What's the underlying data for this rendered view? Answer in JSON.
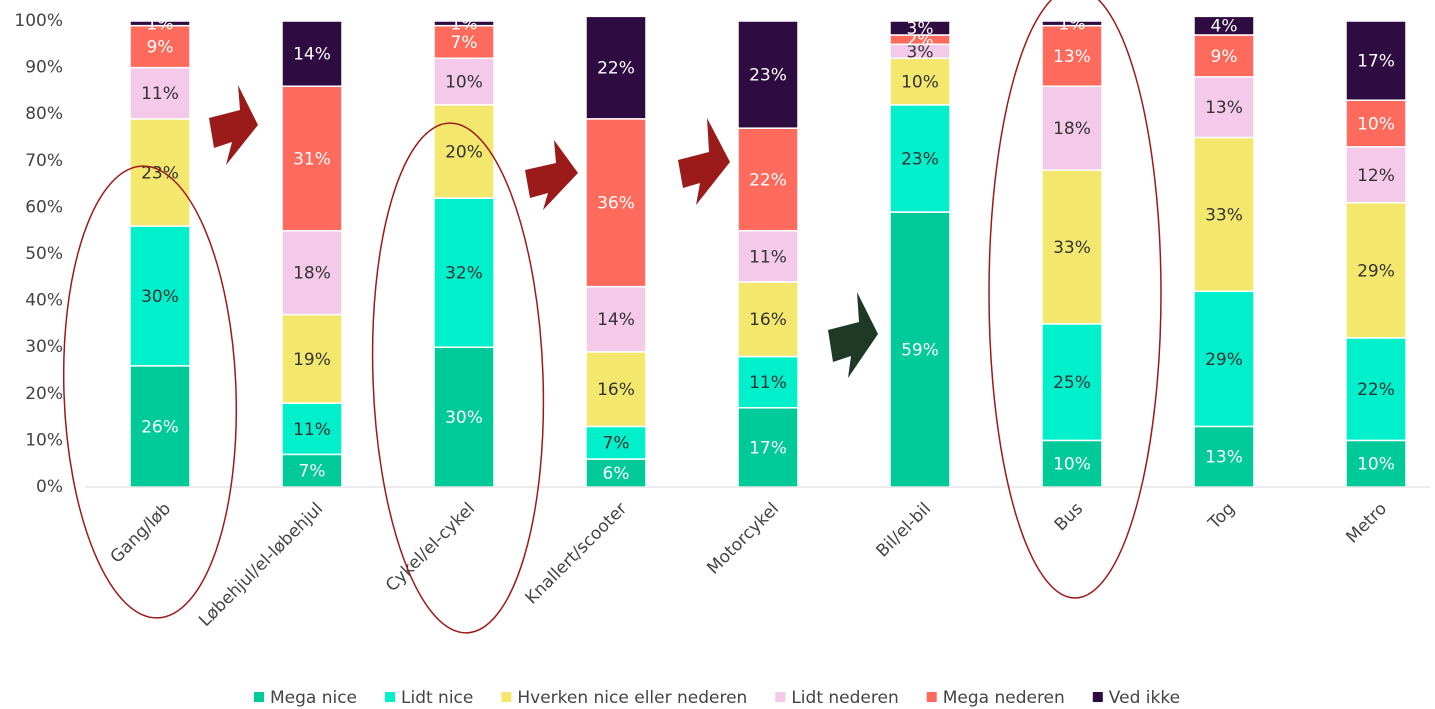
{
  "chart_data": {
    "type": "stacked_bar",
    "categories": [
      "Gang/løb",
      "Løbehjul/el-løbehjul",
      "Cykel/el-cykel",
      "Knallert/scooter",
      "Motorcykel",
      "Bil/el-bil",
      "Bus",
      "Tog",
      "Metro"
    ],
    "series": [
      {
        "name": "Mega nice",
        "color": "#00c99a",
        "values": [
          26,
          7,
          30,
          6,
          17,
          59,
          10,
          13,
          10
        ],
        "value_labels": [
          "26%",
          "7%",
          "30%",
          "6%",
          "17%",
          "59%",
          "10%",
          "13%",
          "10%"
        ]
      },
      {
        "name": "Lidt nice",
        "color": "#00f0cc",
        "values": [
          30,
          11,
          32,
          7,
          11,
          23,
          25,
          29,
          22
        ],
        "value_labels": [
          "30%",
          "11%",
          "32%",
          "7%",
          "11%",
          "23%",
          "25%",
          "29%",
          "22%"
        ]
      },
      {
        "name": "Hverken nice eller nederen",
        "color": "#f4e76e",
        "values": [
          23,
          19,
          20,
          16,
          16,
          10,
          33,
          33,
          29
        ],
        "value_labels": [
          "23%",
          "19%",
          "20%",
          "16%",
          "16%",
          "10%",
          "33%",
          "33%",
          "29%"
        ]
      },
      {
        "name": "Lidt nederen",
        "color": "#f4c9e9",
        "values": [
          11,
          18,
          10,
          14,
          11,
          3,
          18,
          13,
          12
        ],
        "value_labels": [
          "11%",
          "18%",
          "10%",
          "14%",
          "11%",
          "3%",
          "18%",
          "13%",
          "12%"
        ]
      },
      {
        "name": "Mega nederen",
        "color": "#fe6a5c",
        "values": [
          9,
          31,
          7,
          36,
          22,
          2,
          13,
          9,
          10
        ],
        "value_labels": [
          "9%",
          "31%",
          "7%",
          "36%",
          "22%",
          "2%",
          "13%",
          "9%",
          "10%"
        ]
      },
      {
        "name": "Ved ikke",
        "color": "#2e0b40",
        "values": [
          1,
          14,
          1,
          22,
          23,
          3,
          1,
          4,
          17
        ],
        "value_labels": [
          "1%",
          "14%",
          "1%",
          "22%",
          "23%",
          "3%",
          "1%",
          "4%",
          "17%"
        ]
      }
    ],
    "ylim": [
      0,
      100
    ],
    "yticks": [
      {
        "value": 0,
        "label": "0%"
      },
      {
        "value": 10,
        "label": "10%"
      },
      {
        "value": 20,
        "label": "20%"
      },
      {
        "value": 30,
        "label": "30%"
      },
      {
        "value": 40,
        "label": "40%"
      },
      {
        "value": 50,
        "label": "50%"
      },
      {
        "value": 60,
        "label": "60%"
      },
      {
        "value": 70,
        "label": "70%"
      },
      {
        "value": 80,
        "label": "80%"
      },
      {
        "value": 90,
        "label": "90%"
      },
      {
        "value": 100,
        "label": "100%"
      }
    ],
    "grid": false,
    "legend": "bottom"
  }
}
